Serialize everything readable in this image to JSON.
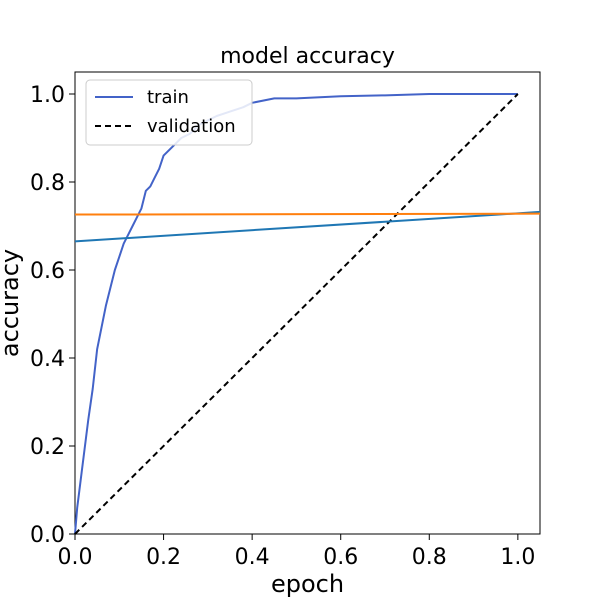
{
  "chart_data": {
    "type": "line",
    "title": "model accuracy",
    "xlabel": "epoch",
    "ylabel": "accuracy",
    "xlim": [
      0.0,
      1.05
    ],
    "ylim": [
      0.0,
      1.05
    ],
    "xticks": [
      0.0,
      0.2,
      0.4,
      0.6,
      0.8,
      1.0
    ],
    "yticks": [
      0.0,
      0.2,
      0.4,
      0.6,
      0.8,
      1.0
    ],
    "xtick_labels": [
      "0.0",
      "0.2",
      "0.4",
      "0.6",
      "0.8",
      "1.0"
    ],
    "ytick_labels": [
      "0.0",
      "0.2",
      "0.4",
      "0.6",
      "0.8",
      "1.0"
    ],
    "grid": false,
    "legend_position": "upper-left",
    "series": [
      {
        "name": "train",
        "style": "solid",
        "color": "#4363c8",
        "x": [
          0.0,
          0.005,
          0.01,
          0.015,
          0.02,
          0.025,
          0.03,
          0.04,
          0.05,
          0.06,
          0.07,
          0.08,
          0.09,
          0.1,
          0.11,
          0.12,
          0.13,
          0.14,
          0.15,
          0.16,
          0.17,
          0.18,
          0.19,
          0.2,
          0.22,
          0.24,
          0.26,
          0.28,
          0.3,
          0.32,
          0.35,
          0.38,
          0.4,
          0.45,
          0.5,
          0.6,
          0.7,
          0.8,
          0.9,
          1.0
        ],
        "y": [
          0.0,
          0.06,
          0.1,
          0.14,
          0.18,
          0.22,
          0.26,
          0.33,
          0.42,
          0.47,
          0.52,
          0.56,
          0.6,
          0.63,
          0.66,
          0.68,
          0.7,
          0.72,
          0.74,
          0.78,
          0.79,
          0.81,
          0.83,
          0.86,
          0.88,
          0.9,
          0.91,
          0.93,
          0.94,
          0.95,
          0.96,
          0.97,
          0.98,
          0.99,
          0.99,
          0.995,
          0.997,
          1.0,
          1.0,
          1.0
        ]
      },
      {
        "name": "validation",
        "style": "dashed",
        "color": "#000000",
        "x": [
          0.0,
          1.0
        ],
        "y": [
          0.0,
          1.0
        ]
      },
      {
        "style": "solid",
        "color": "#1f77b4",
        "x": [
          0.0,
          1.05
        ],
        "y": [
          0.665,
          0.732
        ]
      },
      {
        "style": "solid",
        "color": "#ff7f0e",
        "x": [
          0.0,
          1.05
        ],
        "y": [
          0.726,
          0.728
        ]
      }
    ]
  }
}
